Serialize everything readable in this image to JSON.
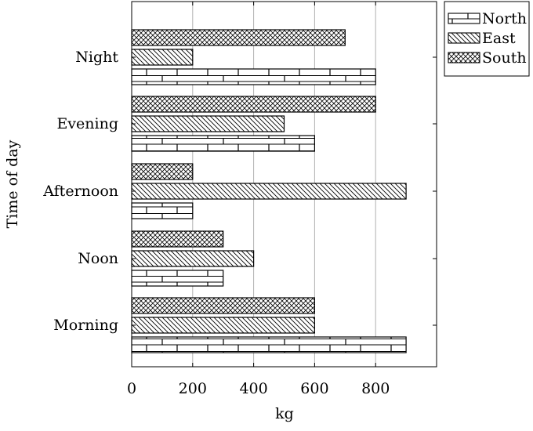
{
  "chart_data": {
    "type": "bar",
    "orientation": "horizontal",
    "title": "",
    "xlabel": "kg",
    "ylabel": "Time of day",
    "categories": [
      "Morning",
      "Noon",
      "Afternoon",
      "Evening",
      "Night"
    ],
    "xlim": [
      0,
      1000
    ],
    "xticks": [
      0,
      200,
      400,
      600,
      800
    ],
    "grid": "vertical major gridlines",
    "legend_position": "outside top-right",
    "series": [
      {
        "name": "North",
        "pattern": "bricks",
        "values": [
          900,
          300,
          200,
          600,
          800
        ]
      },
      {
        "name": "East",
        "pattern": "north east lines",
        "values": [
          600,
          400,
          900,
          500,
          200
        ]
      },
      {
        "name": "South",
        "pattern": "crosshatch",
        "values": [
          600,
          300,
          200,
          800,
          700
        ]
      }
    ]
  }
}
